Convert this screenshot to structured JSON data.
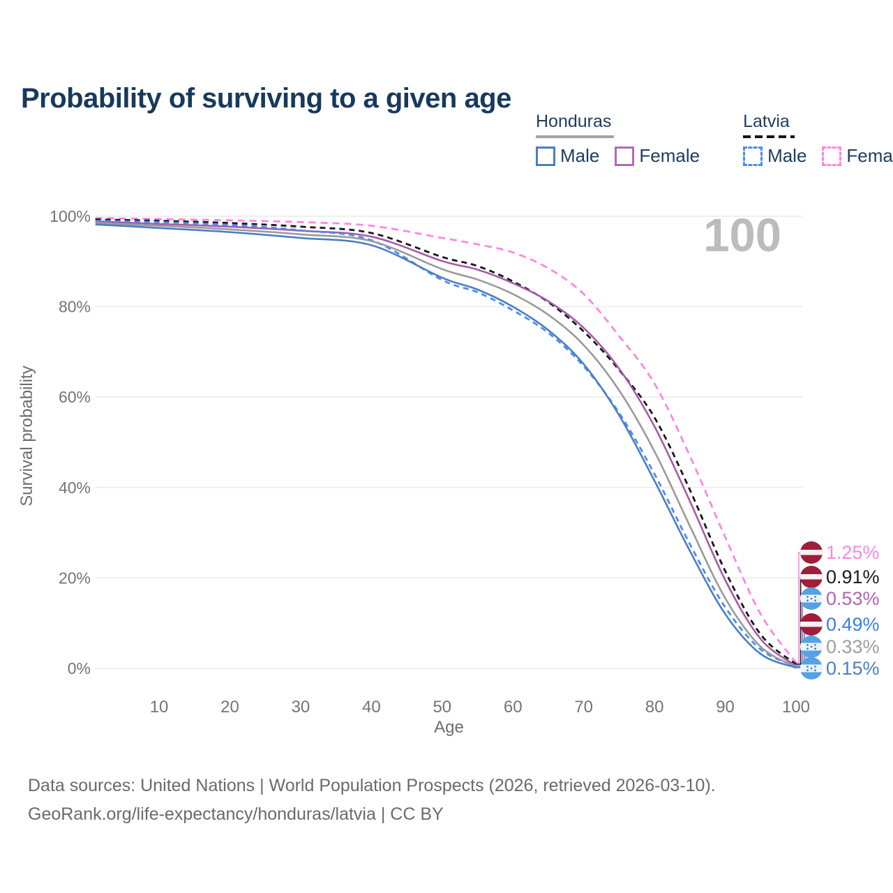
{
  "title": "Probability of surviving to a given age",
  "legend": {
    "groups": [
      {
        "name": "Honduras",
        "line_style": "solid",
        "underline_color": "#a3a3a3",
        "items": [
          {
            "label": "Male",
            "color": "#4a7fc1"
          },
          {
            "label": "Female",
            "color": "#b06cb3"
          }
        ]
      },
      {
        "name": "Latvia",
        "line_style": "dashed",
        "underline_color": "#141414",
        "items": [
          {
            "label": "Male",
            "color": "#4c8bf5"
          },
          {
            "label": "Female",
            "color": "#ff85e2"
          }
        ]
      }
    ]
  },
  "chart_data": {
    "type": "line",
    "xlabel": "Age",
    "ylabel": "Survival probability",
    "watermark": "100",
    "x_ticks": [
      10,
      20,
      30,
      40,
      50,
      60,
      70,
      80,
      90,
      100
    ],
    "y_ticks": [
      {
        "value": 0,
        "label": "0%"
      },
      {
        "value": 20,
        "label": "20%"
      },
      {
        "value": 40,
        "label": "40%"
      },
      {
        "value": 60,
        "label": "60%"
      },
      {
        "value": 80,
        "label": "80%"
      },
      {
        "value": 100,
        "label": "100%"
      }
    ],
    "xlim": [
      1,
      101
    ],
    "ylim": [
      0,
      100
    ],
    "grid": "horizontal-only",
    "legend_position": "top-right",
    "ages": [
      1,
      10,
      20,
      30,
      40,
      50,
      55,
      60,
      65,
      70,
      75,
      80,
      85,
      90,
      95,
      100
    ],
    "series": [
      {
        "name": "Latvia Female",
        "country": "Latvia",
        "sex": "Female",
        "line": "dashed",
        "color": "#ff85e2",
        "label_color": "#ff85e2",
        "values": [
          99.6,
          99.4,
          99.1,
          98.7,
          97.9,
          95.2,
          93.8,
          92.0,
          88.5,
          82.8,
          73.5,
          63.0,
          47.0,
          29.0,
          12.0,
          1.25
        ],
        "end_label": "1.25%"
      },
      {
        "name": "Latvia Both sexes",
        "country": "Latvia",
        "sex": "Both",
        "line": "dashed",
        "color": "#161616",
        "label_color": "#1a1a1a",
        "values": [
          99.3,
          99.0,
          98.5,
          97.7,
          96.3,
          91.0,
          89.0,
          85.6,
          81.0,
          74.5,
          66.0,
          55.5,
          39.5,
          21.5,
          7.5,
          0.91
        ],
        "end_label": "0.91%"
      },
      {
        "name": "Honduras Female",
        "country": "Honduras",
        "sex": "Female",
        "line": "solid",
        "color": "#a55ba8",
        "label_color": "#b264b2",
        "values": [
          98.9,
          98.3,
          97.7,
          96.8,
          95.5,
          90.1,
          88.2,
          85.2,
          81.2,
          75.3,
          66.3,
          53.5,
          37.0,
          19.5,
          6.5,
          0.53
        ],
        "end_label": "0.53%"
      },
      {
        "name": "Latvia Male",
        "country": "Latvia",
        "sex": "Male",
        "line": "dashed",
        "color": "#4c8bf5",
        "label_color": "#3b7de8",
        "values": [
          99.0,
          98.7,
          98.1,
          96.9,
          94.7,
          85.9,
          83.2,
          79.2,
          74.2,
          66.8,
          56.5,
          43.0,
          27.5,
          13.5,
          4.2,
          0.49
        ],
        "end_label": "0.49%"
      },
      {
        "name": "Honduras Both sexes",
        "country": "Honduras",
        "sex": "Both",
        "line": "solid",
        "color": "#9a9a9a",
        "label_color": "#9e9e9e",
        "values": [
          98.5,
          97.9,
          97.1,
          96.0,
          94.5,
          88.3,
          86.0,
          82.8,
          78.2,
          71.5,
          61.5,
          48.0,
          31.5,
          15.5,
          4.8,
          0.33
        ],
        "end_label": "0.33%"
      },
      {
        "name": "Honduras Male",
        "country": "Honduras",
        "sex": "Male",
        "line": "solid",
        "color": "#4a7fc1",
        "label_color": "#4a7fc1",
        "values": [
          98.2,
          97.4,
          96.5,
          95.2,
          93.6,
          86.4,
          83.8,
          80.0,
          74.8,
          67.3,
          56.0,
          41.5,
          26.0,
          12.0,
          3.2,
          0.15
        ],
        "end_label": "0.15%"
      }
    ]
  },
  "flag_colors": {
    "latvia_red": "#a01d3c",
    "latvia_white": "#f3f3f3",
    "honduras_blue": "#55a1e4",
    "honduras_white": "#eef3f6",
    "honduras_star_blue": "#3b82c4"
  },
  "palette": {
    "title": "#18395c",
    "tick_text": "#747474",
    "axis_title": "#6d6d6d",
    "gridline": "#e8e8e8",
    "watermark": "#bcbcbc",
    "footer_text": "#6a6a6a"
  },
  "footer": {
    "line1": "Data sources: United Nations | World Population Prospects (2026, retrieved 2026-03-10).",
    "line2": "GeoRank.org/life-expectancy/honduras/latvia | CC BY"
  }
}
